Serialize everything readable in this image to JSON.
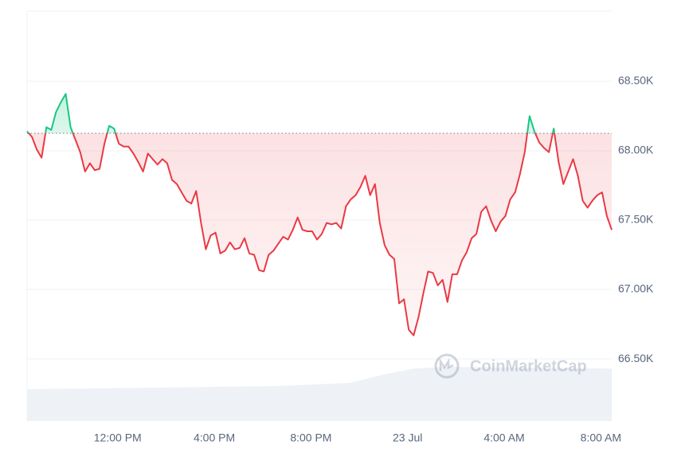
{
  "chart_data": {
    "type": "line",
    "watermark": "CoinMarketCap",
    "x": [
      8.25,
      8.45,
      8.65,
      8.85,
      9.05,
      9.25,
      9.45,
      9.65,
      9.85,
      10.05,
      10.25,
      10.45,
      10.65,
      10.85,
      11.05,
      11.25,
      11.45,
      11.65,
      11.85,
      12.05,
      12.25,
      12.45,
      12.65,
      12.85,
      13.05,
      13.25,
      13.45,
      13.65,
      13.85,
      14.05,
      14.25,
      14.45,
      14.65,
      14.85,
      15.05,
      15.25,
      15.45,
      15.65,
      15.85,
      16.05,
      16.25,
      16.45,
      16.65,
      16.85,
      17.05,
      17.25,
      17.45,
      17.65,
      17.85,
      18.05,
      18.25,
      18.45,
      18.65,
      18.85,
      19.05,
      19.25,
      19.45,
      19.65,
      19.85,
      20.05,
      20.25,
      20.45,
      20.65,
      20.85,
      21.05,
      21.25,
      21.45,
      21.65,
      21.85,
      22.05,
      22.25,
      22.45,
      22.65,
      22.85,
      23.05,
      23.25,
      23.45,
      23.65,
      23.85,
      24.05,
      24.25,
      24.45,
      24.65,
      24.85,
      25.05,
      25.25,
      25.45,
      25.65,
      25.85,
      26.05,
      26.25,
      26.45,
      26.65,
      26.85,
      27.05,
      27.25,
      27.45,
      27.65,
      27.85,
      28.05,
      28.25,
      28.45,
      28.65,
      28.85,
      29.05,
      29.25,
      29.45,
      29.65,
      29.85,
      30.05,
      30.25,
      30.45,
      30.65,
      30.85,
      31.05,
      31.25,
      31.45,
      31.65,
      31.85,
      32.05,
      32.25,
      32.45
    ],
    "series": [
      {
        "color_up": "#16c784",
        "color": "#ea3943",
        "values": [
          68140,
          68100,
          68010,
          67950,
          68170,
          68150,
          68280,
          68350,
          68410,
          68170,
          68080,
          67990,
          67850,
          67910,
          67860,
          67870,
          68050,
          68180,
          68160,
          68050,
          68030,
          68030,
          67980,
          67920,
          67850,
          67980,
          67940,
          67900,
          67940,
          67910,
          67790,
          67760,
          67700,
          67640,
          67620,
          67710,
          67480,
          67290,
          67390,
          67410,
          67260,
          67280,
          67340,
          67290,
          67300,
          67370,
          67260,
          67250,
          67140,
          67130,
          67250,
          67280,
          67330,
          67380,
          67360,
          67430,
          67520,
          67430,
          67420,
          67420,
          67360,
          67400,
          67480,
          67470,
          67480,
          67440,
          67600,
          67650,
          67680,
          67740,
          67820,
          67680,
          67760,
          67480,
          67320,
          67250,
          67220,
          66900,
          66930,
          66710,
          66670,
          66800,
          66970,
          67130,
          67120,
          67030,
          67070,
          66910,
          67110,
          67110,
          67210,
          67270,
          67370,
          67400,
          67560,
          67600,
          67500,
          67420,
          67490,
          67530,
          67650,
          67700,
          67830,
          67990,
          68250,
          68140,
          68060,
          68020,
          67990,
          68160,
          67920,
          67760,
          67850,
          67940,
          67820,
          67640,
          67590,
          67640,
          67680,
          67700,
          67530,
          67430
        ]
      }
    ],
    "reference_line": 68126,
    "xlim": [
      8.25,
      32.45
    ],
    "xticks": [
      {
        "value": 12,
        "label": "12:00 PM"
      },
      {
        "value": 16,
        "label": "4:00 PM"
      },
      {
        "value": 20,
        "label": "8:00 PM"
      },
      {
        "value": 24,
        "label": "23 Jul"
      },
      {
        "value": 28,
        "label": "4:00 AM"
      },
      {
        "value": 32,
        "label": "8:00 AM"
      }
    ],
    "ylim": [
      66052,
      69006
    ],
    "yticks": [
      {
        "value": 66500,
        "label": "66.50K"
      },
      {
        "value": 67000,
        "label": "67.00K"
      },
      {
        "value": 67500,
        "label": "67.50K"
      },
      {
        "value": 68000,
        "label": "68.00K"
      },
      {
        "value": 68500,
        "label": "68.50K"
      }
    ],
    "grid": true
  }
}
